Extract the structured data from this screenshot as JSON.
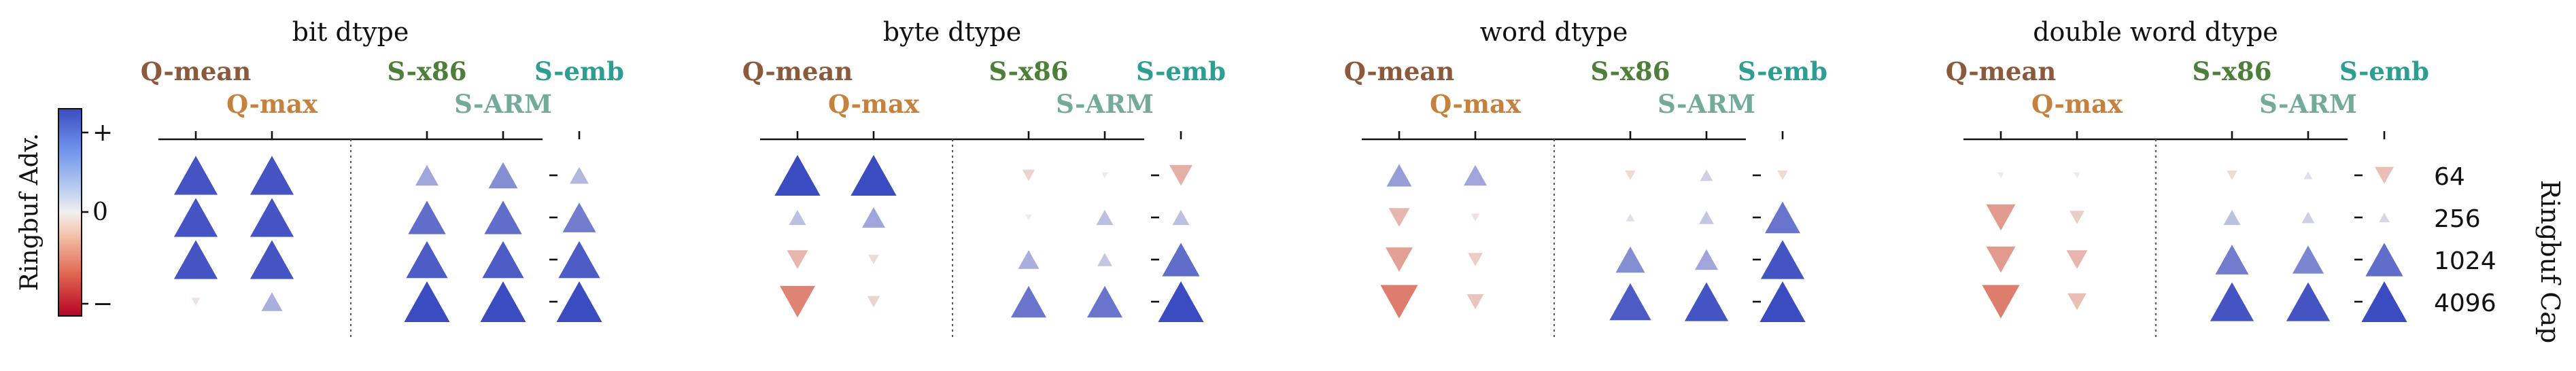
{
  "chart_data": {
    "type": "scatter",
    "marker_encoding": "triangle up = positive, triangle down = negative; size and color encode magnitude",
    "methods": [
      {
        "key": "q_mean",
        "label": "Q-mean",
        "color": "#8b5a3c"
      },
      {
        "key": "q_max",
        "label": "Q-max",
        "color": "#c5823f"
      },
      {
        "key": "s_x86",
        "label": "S-x86",
        "color": "#4e7f3a"
      },
      {
        "key": "s_arm",
        "label": "S-ARM",
        "color": "#74aa9a"
      },
      {
        "key": "s_emb",
        "label": "S-emb",
        "color": "#2e9e92"
      }
    ],
    "ylabel": "Ringbuf Cap",
    "y_ticks": [
      "64",
      "256",
      "1024",
      "4096"
    ],
    "colorbar": {
      "label": "Ringbuf Adv.",
      "ticks": [
        "+",
        "0",
        "−"
      ],
      "range": [
        -1,
        1
      ]
    },
    "panels": [
      {
        "title": "bit dtype",
        "values": [
          [
            0.95,
            0.95,
            0.45,
            0.6,
            0.35
          ],
          [
            0.95,
            0.95,
            0.8,
            0.8,
            0.7
          ],
          [
            0.95,
            0.95,
            0.9,
            0.9,
            0.9
          ],
          [
            -0.1,
            0.4,
            1.0,
            1.0,
            1.0
          ]
        ]
      },
      {
        "title": "byte dtype",
        "values": [
          [
            1.0,
            1.0,
            -0.2,
            -0.05,
            -0.45
          ],
          [
            0.3,
            0.45,
            -0.05,
            0.3,
            0.3
          ],
          [
            -0.4,
            -0.15,
            0.4,
            0.25,
            0.8
          ],
          [
            -0.75,
            -0.2,
            0.75,
            0.75,
            1.0
          ]
        ]
      },
      {
        "title": "word dtype",
        "values": [
          [
            0.5,
            0.45,
            -0.15,
            0.2,
            -0.15
          ],
          [
            -0.4,
            -0.1,
            0.1,
            0.25,
            0.75
          ],
          [
            -0.55,
            -0.25,
            0.6,
            0.45,
            0.95
          ],
          [
            -0.8,
            -0.3,
            0.9,
            0.95,
            1.0
          ]
        ]
      },
      {
        "title": "double word dtype",
        "values": [
          [
            -0.05,
            -0.05,
            -0.15,
            0.1,
            -0.35
          ],
          [
            -0.6,
            -0.25,
            0.3,
            0.2,
            0.15
          ],
          [
            -0.6,
            -0.4,
            0.7,
            0.65,
            0.8
          ],
          [
            -0.8,
            -0.35,
            0.95,
            0.95,
            1.0
          ]
        ]
      }
    ]
  }
}
